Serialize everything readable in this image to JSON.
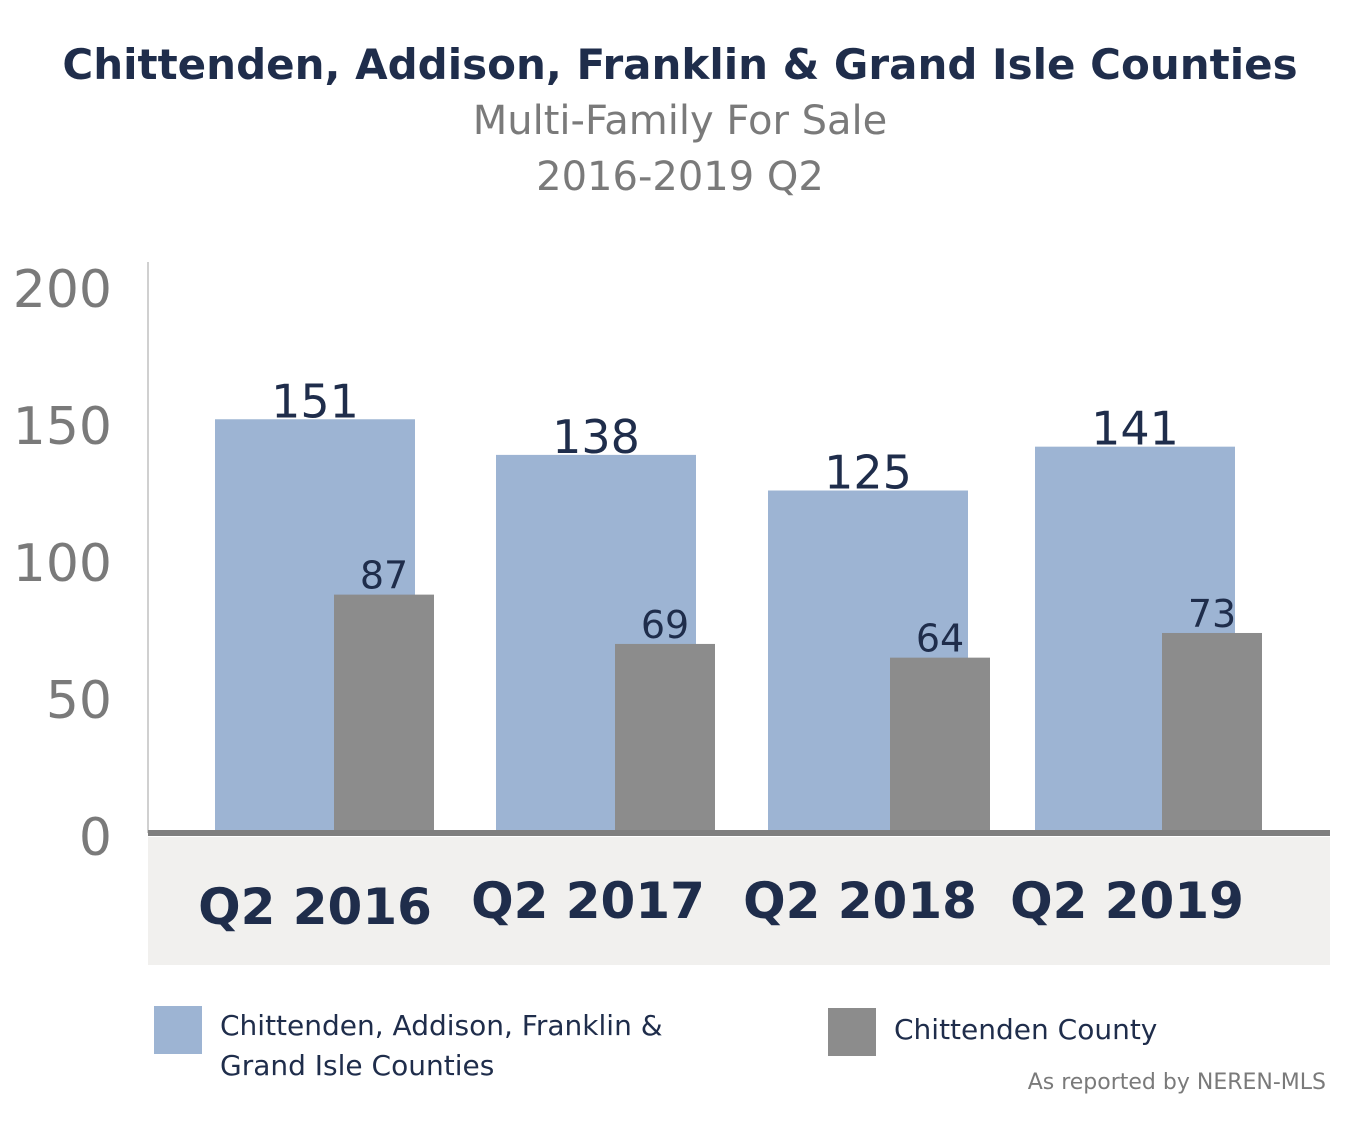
{
  "header": {
    "title": "Chittenden, Addison, Franklin & Grand Isle Counties",
    "subtitle": "Multi-Family For Sale",
    "period": "2016-2019 Q2"
  },
  "chart_data": {
    "type": "bar",
    "categories": [
      "Q2 2016",
      "Q2 2017",
      "Q2 2018",
      "Q2 2019"
    ],
    "series": [
      {
        "name": "Chittenden, Addison, Franklin & Grand Isle Counties",
        "values": [
          151,
          138,
          125,
          141
        ],
        "color": "#9db4d3"
      },
      {
        "name": "Chittenden County",
        "values": [
          87,
          69,
          64,
          73
        ],
        "color": "#8c8c8c"
      }
    ],
    "y_ticks": [
      "0",
      "50",
      "100",
      "150",
      "200"
    ],
    "ylim": [
      0,
      200
    ],
    "grid": false,
    "legend_position": "bottom"
  },
  "legend": {
    "series1_label": "Chittenden, Addison, Franklin & Grand Isle Counties",
    "series2_label": "Chittenden County"
  },
  "footer": {
    "source": "As reported by NEREN-MLS"
  },
  "colors": {
    "title": "#1f2d4b",
    "muted": "#7a7a7a",
    "axis_band": "#f1f0ee",
    "baseline": "#7f7f7f"
  }
}
